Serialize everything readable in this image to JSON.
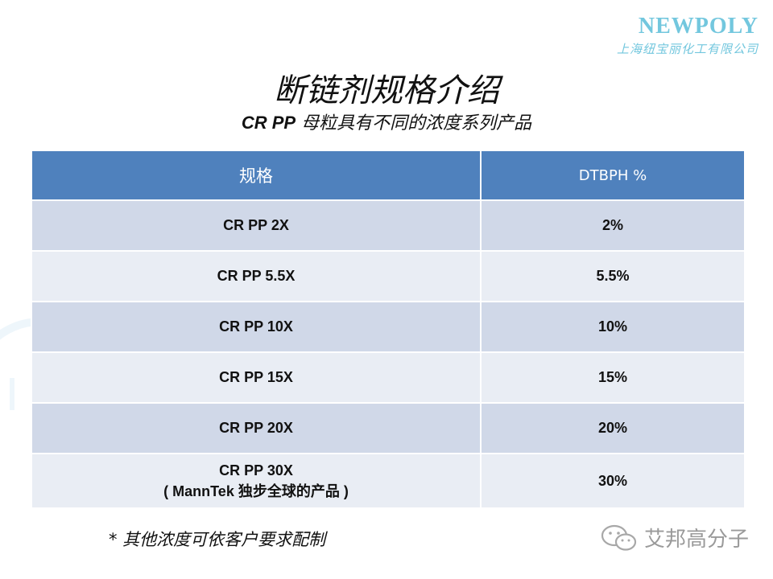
{
  "logo": {
    "brand": "NEWPOLY",
    "company": "上海纽宝丽化工有限公司"
  },
  "title": "断链剂规格介绍",
  "subtitle": {
    "bold": "CR PP",
    "rest": " 母粒具有不同的浓度系列产品"
  },
  "table": {
    "headers": [
      "规格",
      "DTBPH %"
    ],
    "rows": [
      {
        "spec": "CR PP 2X",
        "spec_note": "",
        "dtbph": "2%"
      },
      {
        "spec": "CR PP 5.5X",
        "spec_note": "",
        "dtbph": "5.5%"
      },
      {
        "spec": "CR PP 10X",
        "spec_note": "",
        "dtbph": "10%"
      },
      {
        "spec": "CR PP 15X",
        "spec_note": "",
        "dtbph": "15%"
      },
      {
        "spec": "CR PP 20X",
        "spec_note": "",
        "dtbph": "20%"
      },
      {
        "spec": "CR PP 30X",
        "spec_note": "( MannTek 独步全球的产品 )",
        "dtbph": "30%"
      }
    ]
  },
  "footnote": "* 其他浓度可依客户要求配制",
  "watermark": {
    "icon": "wechat-icon",
    "text": "艾邦高分子"
  },
  "colors": {
    "header_bg": "#4f81bd",
    "row_odd": "#d0d8e8",
    "row_even": "#e9edf4",
    "logo": "#73c7de"
  }
}
